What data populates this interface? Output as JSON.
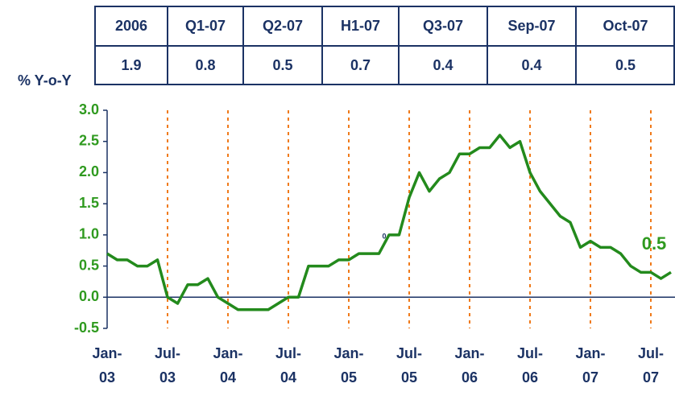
{
  "table": {
    "columns": [
      "2006",
      "Q1-07",
      "Q2-07",
      "H1-07",
      "Q3-07",
      "Sep-07",
      "Oct-07"
    ],
    "values": [
      1.9,
      0.8,
      0.5,
      0.7,
      0.4,
      0.4,
      0.5
    ]
  },
  "chart_data": {
    "type": "line",
    "ylabel": "% Y-o-Y",
    "categories": [
      "Jan-03",
      null,
      null,
      null,
      null,
      null,
      "Jul-03",
      null,
      null,
      null,
      null,
      null,
      "Jan-04",
      null,
      null,
      null,
      null,
      null,
      "Jul-04",
      null,
      null,
      null,
      null,
      null,
      "Jan-05",
      null,
      null,
      null,
      null,
      null,
      "Jul-05",
      null,
      null,
      null,
      null,
      null,
      "Jan-06",
      null,
      null,
      null,
      null,
      null,
      "Jul-06",
      null,
      null,
      null,
      null,
      null,
      "Jan-07",
      null,
      null,
      null,
      null,
      null,
      "Jul-07",
      null,
      null
    ],
    "series": [
      {
        "name": "% Y-o-Y",
        "color": "#238a1c",
        "values": [
          0.7,
          0.6,
          0.6,
          0.5,
          0.5,
          0.6,
          0.0,
          -0.1,
          0.2,
          0.2,
          0.3,
          0.0,
          -0.1,
          -0.2,
          -0.2,
          -0.2,
          -0.2,
          -0.1,
          0.0,
          0.0,
          0.5,
          0.5,
          0.5,
          0.6,
          0.6,
          0.7,
          0.7,
          0.7,
          1.0,
          1.0,
          1.6,
          2.0,
          1.7,
          1.9,
          2.0,
          2.3,
          2.3,
          2.4,
          2.4,
          2.6,
          2.4,
          2.5,
          2.0,
          1.7,
          1.5,
          1.3,
          1.2,
          0.8,
          0.9,
          0.8,
          0.8,
          0.7,
          0.5,
          0.4,
          0.4,
          0.3,
          0.4
        ]
      }
    ],
    "ylim": [
      -0.5,
      3.0
    ],
    "yticks": [
      {
        "value": -0.5,
        "label": "-0.5"
      },
      {
        "value": 0,
        "label": "0.0"
      },
      {
        "value": 0.5,
        "label": "0.5"
      },
      {
        "value": 1,
        "label": "1.0"
      },
      {
        "value": 1.5,
        "label": "1.5"
      },
      {
        "value": 2,
        "label": "2.0"
      },
      {
        "value": 2.5,
        "label": "2.5"
      },
      {
        "value": 3,
        "label": "3.0"
      }
    ],
    "vertical_guides": true,
    "annotations": [
      "0",
      "0.5"
    ]
  }
}
